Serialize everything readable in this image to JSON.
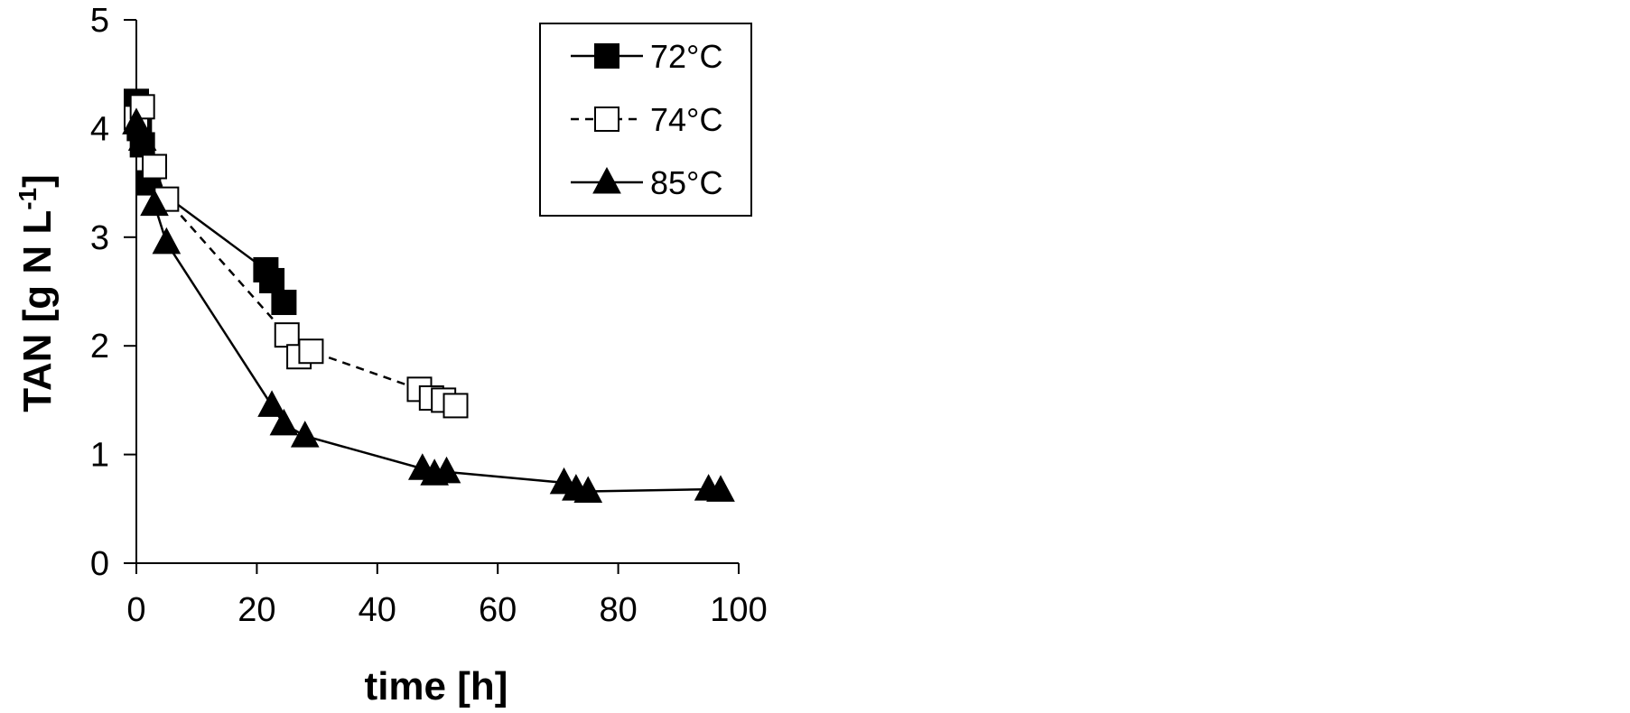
{
  "chart_data": {
    "type": "scatter",
    "xlabel": "time [h]",
    "ylabel_main": "TAN [g N L",
    "ylabel_sup": "-1",
    "ylabel_close": "]",
    "xlim": [
      0,
      100
    ],
    "ylim": [
      0,
      5
    ],
    "xticks": [
      "0",
      "20",
      "40",
      "60",
      "80",
      "100"
    ],
    "yticks": [
      "0",
      "1",
      "2",
      "3",
      "4",
      "5"
    ],
    "grid": false,
    "legend_position": "top-right",
    "series": [
      {
        "name": "72°C",
        "marker": "filled-square",
        "line": "solid",
        "x": [
          0,
          0.5,
          1,
          2,
          21.5,
          22.5,
          24.5
        ],
        "y": [
          4.25,
          4.0,
          3.85,
          3.5,
          2.7,
          2.6,
          2.4
        ]
      },
      {
        "name": "74°C",
        "marker": "open-square",
        "line": "dashed",
        "x": [
          0,
          1,
          3,
          5,
          25,
          27,
          29,
          47,
          49,
          51,
          53
        ],
        "y": [
          4.1,
          4.2,
          3.65,
          3.35,
          2.1,
          1.9,
          1.95,
          1.6,
          1.52,
          1.5,
          1.45
        ]
      },
      {
        "name": "85°C",
        "marker": "filled-triangle",
        "line": "solid",
        "x": [
          0,
          1,
          3,
          5,
          22.5,
          24.5,
          28,
          47.5,
          49.5,
          51.5,
          71,
          73,
          75,
          95,
          97
        ],
        "y": [
          4.05,
          3.9,
          3.3,
          2.95,
          1.45,
          1.28,
          1.17,
          0.87,
          0.82,
          0.84,
          0.74,
          0.68,
          0.66,
          0.68,
          0.67
        ]
      }
    ]
  }
}
